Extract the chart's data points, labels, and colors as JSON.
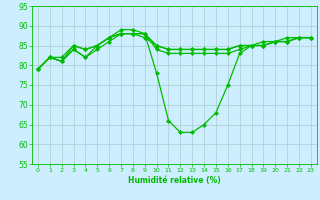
{
  "xlabel": "Humidité relative (%)",
  "ylabel": "",
  "xlim": [
    -0.5,
    23.5
  ],
  "ylim": [
    55,
    95
  ],
  "yticks": [
    55,
    60,
    65,
    70,
    75,
    80,
    85,
    90,
    95
  ],
  "xticks": [
    0,
    1,
    2,
    3,
    4,
    5,
    6,
    7,
    8,
    9,
    10,
    11,
    12,
    13,
    14,
    15,
    16,
    17,
    18,
    19,
    20,
    21,
    22,
    23
  ],
  "bg_color": "#cceeff",
  "grid_color": "#aacccc",
  "line_color": "#00bb00",
  "lines": [
    [
      79,
      82,
      81,
      84,
      82,
      84,
      86,
      88,
      88,
      88,
      78,
      66,
      63,
      63,
      65,
      68,
      75,
      83,
      85,
      85,
      86,
      86,
      87,
      87
    ],
    [
      79,
      82,
      81,
      84,
      82,
      85,
      87,
      88,
      88,
      88,
      84,
      83,
      83,
      83,
      83,
      83,
      83,
      84,
      85,
      85,
      86,
      86,
      87,
      87
    ],
    [
      79,
      82,
      81,
      85,
      84,
      85,
      87,
      89,
      89,
      88,
      85,
      84,
      84,
      84,
      84,
      84,
      84,
      85,
      85,
      86,
      86,
      87,
      87,
      87
    ],
    [
      79,
      82,
      82,
      85,
      84,
      85,
      87,
      88,
      88,
      87,
      85,
      84,
      84,
      84,
      84,
      84,
      84,
      85,
      85,
      85,
      86,
      86,
      87,
      87
    ]
  ]
}
